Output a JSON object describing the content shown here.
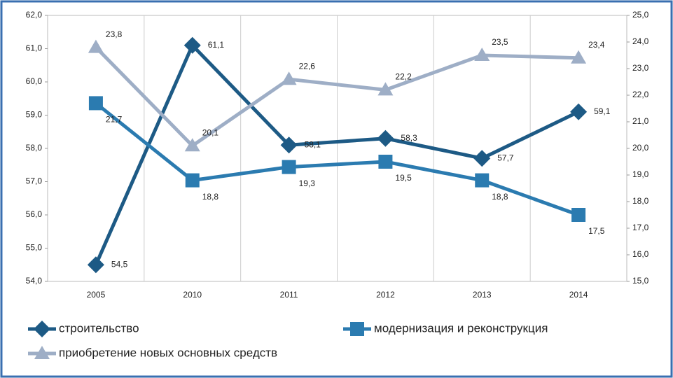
{
  "chart_data": {
    "type": "line",
    "categories": [
      "2005",
      "2010",
      "2011",
      "2012",
      "2013",
      "2014"
    ],
    "series": [
      {
        "name": "строительство",
        "color": "#1d5a85",
        "marker": "diamond",
        "values": [
          54.5,
          61.1,
          58.1,
          58.3,
          57.7,
          59.1
        ],
        "value_labels": [
          "54,5",
          "61,1",
          "58,1",
          "58,3",
          "57,7",
          "59,1"
        ]
      },
      {
        "name": "модернизация и реконструкция",
        "color": "#2b7bb0",
        "marker": "square",
        "axis": "y2",
        "values": [
          21.7,
          18.8,
          19.3,
          19.5,
          18.8,
          17.5
        ],
        "value_labels": [
          "21,7",
          "18,8",
          "19,3",
          "19,5",
          "18,8",
          "17,5"
        ]
      },
      {
        "name": "приобретение новых основных средств",
        "color": "#9eaec6",
        "marker": "triangle",
        "axis": "y2",
        "values": [
          23.8,
          20.1,
          22.6,
          22.2,
          23.5,
          23.4
        ],
        "value_labels": [
          "23,8",
          "20,1",
          "22,6",
          "22,2",
          "23,5",
          "23,4"
        ]
      }
    ],
    "ylim": [
      54,
      62
    ],
    "yticks": [
      {
        "value": 54,
        "label": "54,0"
      },
      {
        "value": 55,
        "label": "55,0"
      },
      {
        "value": 56,
        "label": "56,0"
      },
      {
        "value": 57,
        "label": "57,0"
      },
      {
        "value": 58,
        "label": "58,0"
      },
      {
        "value": 59,
        "label": "59,0"
      },
      {
        "value": 60,
        "label": "60,0"
      },
      {
        "value": 61,
        "label": "61,0"
      },
      {
        "value": 62,
        "label": "62,0"
      }
    ],
    "y2lim": [
      15,
      25
    ],
    "y2ticks": [
      {
        "value": 15,
        "label": "15,0"
      },
      {
        "value": 16,
        "label": "16,0"
      },
      {
        "value": 17,
        "label": "17,0"
      },
      {
        "value": 18,
        "label": "18,0"
      },
      {
        "value": 19,
        "label": "19,0"
      },
      {
        "value": 20,
        "label": "20,0"
      },
      {
        "value": 21,
        "label": "21,0"
      },
      {
        "value": 22,
        "label": "22,0"
      },
      {
        "value": 23,
        "label": "23,0"
      },
      {
        "value": 24,
        "label": "24,0"
      },
      {
        "value": 25,
        "label": "25,0"
      }
    ]
  }
}
